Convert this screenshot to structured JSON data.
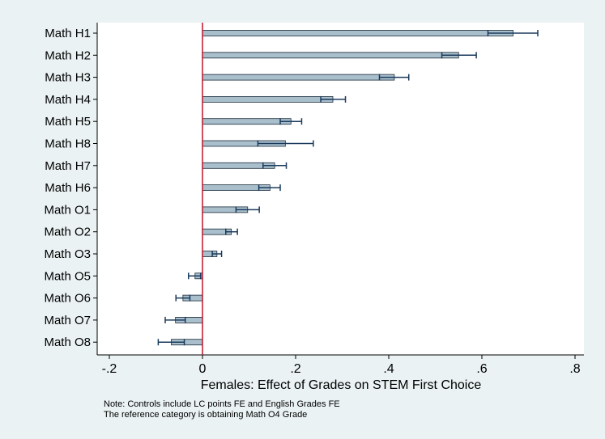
{
  "colors": {
    "background": "#eaf2f3",
    "plot_background": "#ffffff",
    "bar_fill": "#a9bfcc",
    "bar_stroke": "#1a2a3a",
    "error_bar": "#1a3a5c",
    "reference_line": "#c0142a",
    "axis": "#000000"
  },
  "chart_data": {
    "type": "bar",
    "orientation": "horizontal",
    "categories": [
      "Math H1",
      "Math H2",
      "Math H3",
      "Math H4",
      "Math H5",
      "Math H8",
      "Math H7",
      "Math H6",
      "Math O1",
      "Math O2",
      "Math O3",
      "Math O5",
      "Math O6",
      "Math O7",
      "Math O8"
    ],
    "values": [
      0.667,
      0.55,
      0.412,
      0.28,
      0.19,
      0.178,
      0.155,
      0.145,
      0.097,
      0.062,
      0.031,
      -0.016,
      -0.042,
      -0.058,
      -0.067
    ],
    "ci_low": [
      0.613,
      0.514,
      0.38,
      0.254,
      0.167,
      0.119,
      0.13,
      0.121,
      0.072,
      0.05,
      0.021,
      -0.03,
      -0.057,
      -0.08,
      -0.095
    ],
    "ci_high": [
      0.72,
      0.588,
      0.443,
      0.307,
      0.213,
      0.238,
      0.18,
      0.167,
      0.122,
      0.075,
      0.041,
      -0.004,
      -0.027,
      -0.037,
      -0.039
    ],
    "xlim": [
      -0.2,
      0.8
    ],
    "xticks": [
      -0.2,
      0,
      0.2,
      0.4,
      0.6,
      0.8
    ],
    "xtick_labels": [
      "-.2",
      "0",
      ".2",
      ".4",
      ".6",
      ".8"
    ],
    "xlabel": "Females: Effect of Grades on STEM First Choice",
    "ylabel": "",
    "title": "",
    "reference_line_x": 0,
    "grid": false,
    "legend": false
  },
  "notes": [
    "Note: Controls include LC points FE and English Grades FE",
    "The reference category is obtaining Math O4 Grade"
  ]
}
